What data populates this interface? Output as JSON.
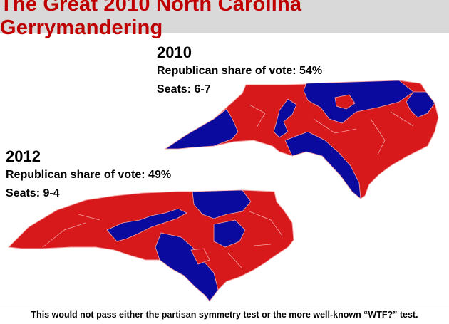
{
  "title": "The Great 2010 North Carolina Gerrymandering",
  "panel_2010": {
    "year": "2010",
    "vote_share": "Republican share of vote: 54%",
    "seats": "Seats: 6-7"
  },
  "panel_2012": {
    "year": "2012",
    "vote_share": "Republican share of vote: 49%",
    "seats": "Seats: 9-4"
  },
  "footer": "This would not pass either the partisan symmetry test or the more well-known “WTF?” test.",
  "colors": {
    "title": "#c00000",
    "republican": "#d7191c",
    "democratic": "#0a0a9e",
    "district_border": "#f4a6a6"
  }
}
